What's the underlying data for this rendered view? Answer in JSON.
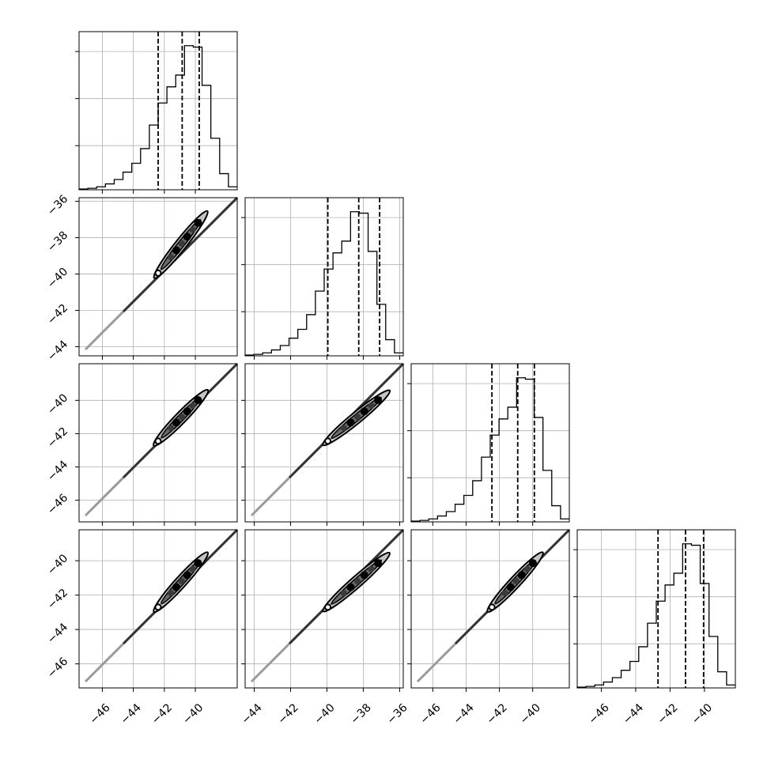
{
  "chart_data": {
    "type": "corner",
    "grid": true,
    "parameters": [
      {
        "range": [
          -47.5,
          -37.3
        ],
        "ticks": [
          -46,
          -44,
          -42,
          -40
        ],
        "tick_labels": [
          "−46",
          "−44",
          "−42",
          "−40"
        ],
        "quantiles": [
          -42.4,
          -40.85,
          -39.75
        ],
        "histogram": [
          0.005,
          0.01,
          0.02,
          0.04,
          0.07,
          0.12,
          0.18,
          0.28,
          0.44,
          0.59,
          0.7,
          0.78,
          0.98,
          0.97,
          0.71,
          0.35,
          0.11,
          0.02
        ]
      },
      {
        "range": [
          -44.5,
          -35.8
        ],
        "ticks": [
          -44,
          -42,
          -40,
          -38,
          -36
        ],
        "tick_labels": [
          "−44",
          "−42",
          "−40",
          "−38",
          "−36"
        ],
        "quantiles": [
          -39.95,
          -38.25,
          -37.1
        ],
        "histogram": [
          0.005,
          0.01,
          0.02,
          0.04,
          0.07,
          0.12,
          0.18,
          0.28,
          0.44,
          0.59,
          0.7,
          0.78,
          0.98,
          0.97,
          0.71,
          0.35,
          0.11,
          0.02
        ]
      },
      {
        "range": [
          -47.3,
          -37.8
        ],
        "ticks": [
          -46,
          -44,
          -42,
          -40
        ],
        "tick_labels": [
          "−46",
          "−44",
          "−42",
          "−40"
        ],
        "quantiles": [
          -42.45,
          -40.9,
          -39.9
        ],
        "histogram": [
          0.005,
          0.01,
          0.02,
          0.04,
          0.07,
          0.12,
          0.18,
          0.28,
          0.44,
          0.59,
          0.7,
          0.78,
          0.98,
          0.97,
          0.71,
          0.35,
          0.11,
          0.02
        ]
      },
      {
        "range": [
          -47.4,
          -38.2
        ],
        "ticks": [
          -46,
          -44,
          -42,
          -40
        ],
        "tick_labels": [
          "−46",
          "−44",
          "−42",
          "−40"
        ],
        "quantiles": [
          -42.7,
          -41.1,
          -40.05
        ],
        "histogram": [
          0.005,
          0.01,
          0.02,
          0.04,
          0.07,
          0.12,
          0.18,
          0.28,
          0.44,
          0.59,
          0.7,
          0.78,
          0.98,
          0.97,
          0.71,
          0.35,
          0.11,
          0.02
        ]
      }
    ]
  }
}
